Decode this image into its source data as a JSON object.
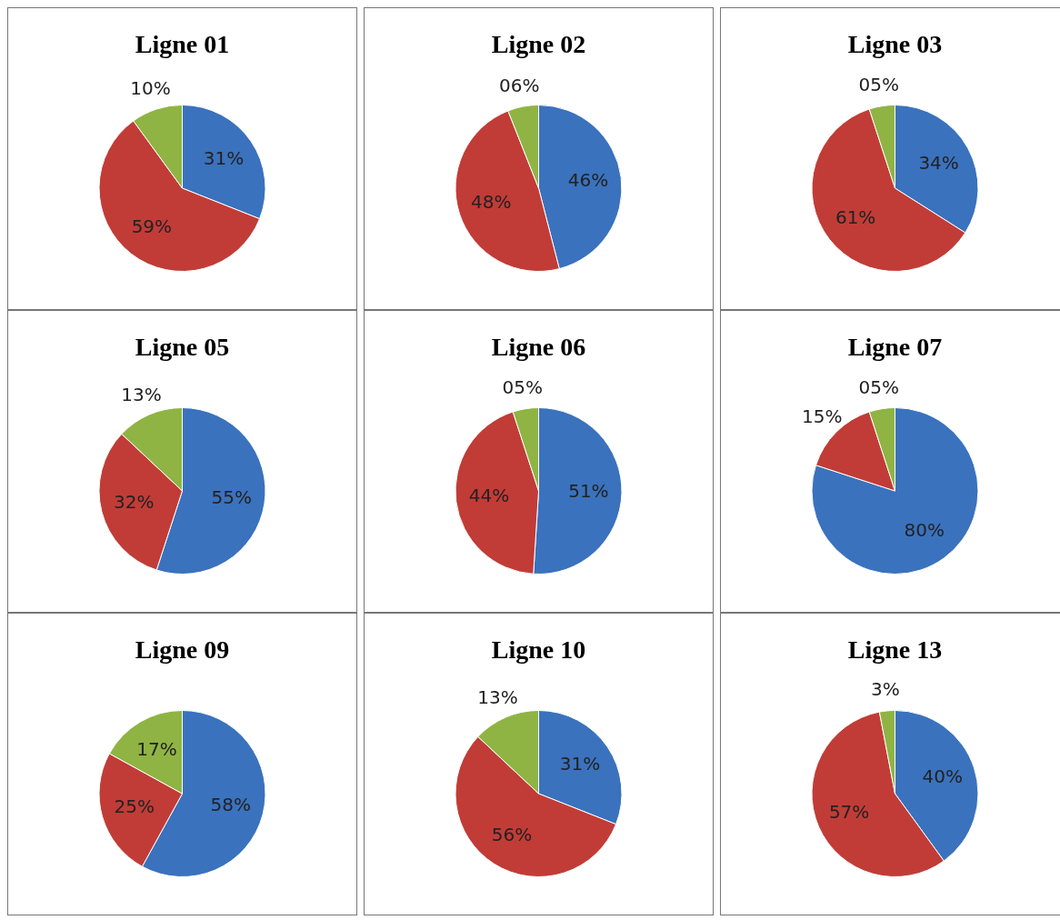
{
  "chart_data": [
    {
      "type": "pie",
      "title": "Ligne 01",
      "categories": [
        null,
        null,
        null
      ],
      "values": [
        31,
        59,
        10
      ],
      "value_labels": [
        "31%",
        "59%",
        "10%"
      ],
      "colors": [
        "#3a72bd",
        "#c13c37",
        "#8fb443"
      ]
    },
    {
      "type": "pie",
      "title": "Ligne 02",
      "categories": [
        null,
        null,
        null
      ],
      "values": [
        46,
        48,
        6
      ],
      "value_labels": [
        "46%",
        "48%",
        "06%"
      ],
      "colors": [
        "#3a72bd",
        "#c13c37",
        "#8fb443"
      ]
    },
    {
      "type": "pie",
      "title": "Ligne 03",
      "categories": [
        null,
        null,
        null
      ],
      "values": [
        34,
        61,
        5
      ],
      "value_labels": [
        "34%",
        "61%",
        "05%"
      ],
      "colors": [
        "#3a72bd",
        "#c13c37",
        "#8fb443"
      ]
    },
    {
      "type": "pie",
      "title": "Ligne 05",
      "categories": [
        null,
        null,
        null
      ],
      "values": [
        55,
        32,
        13
      ],
      "value_labels": [
        "55%",
        "32%",
        "13%"
      ],
      "colors": [
        "#3a72bd",
        "#c13c37",
        "#8fb443"
      ]
    },
    {
      "type": "pie",
      "title": "Ligne 06",
      "categories": [
        null,
        null,
        null
      ],
      "values": [
        51,
        44,
        5
      ],
      "value_labels": [
        "51%",
        "44%",
        "05%"
      ],
      "colors": [
        "#3a72bd",
        "#c13c37",
        "#8fb443"
      ]
    },
    {
      "type": "pie",
      "title": "Ligne 07",
      "categories": [
        null,
        null,
        null
      ],
      "values": [
        80,
        15,
        5
      ],
      "value_labels": [
        "80%",
        "15%",
        "05%"
      ],
      "colors": [
        "#3a72bd",
        "#c13c37",
        "#8fb443"
      ]
    },
    {
      "type": "pie",
      "title": "Ligne 09",
      "categories": [
        null,
        null,
        null
      ],
      "values": [
        58,
        25,
        17
      ],
      "value_labels": [
        "58%",
        "25%",
        "17%"
      ],
      "colors": [
        "#3a72bd",
        "#c13c37",
        "#8fb443"
      ]
    },
    {
      "type": "pie",
      "title": "Ligne 10",
      "categories": [
        null,
        null,
        null
      ],
      "values": [
        31,
        56,
        13
      ],
      "value_labels": [
        "31%",
        "56%",
        "13%"
      ],
      "colors": [
        "#3a72bd",
        "#c13c37",
        "#8fb443"
      ]
    },
    {
      "type": "pie",
      "title": "Ligne 13",
      "categories": [
        null,
        null,
        null
      ],
      "values": [
        40,
        57,
        3
      ],
      "value_labels": [
        "40%",
        "57%",
        "3%"
      ],
      "colors": [
        "#3a72bd",
        "#c13c37",
        "#8fb443"
      ]
    }
  ]
}
